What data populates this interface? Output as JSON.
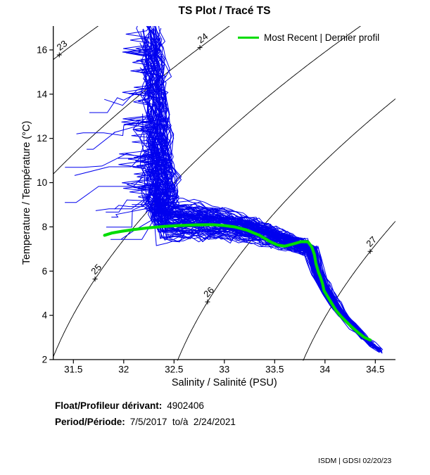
{
  "header": {
    "title": "TS Plot / Tracé TS"
  },
  "legend": {
    "label": "Most Recent | Dernier profil"
  },
  "footer": {
    "float_label": "Float/Profileur dérivant:",
    "float_value": "4902406",
    "period_label": "Period/Période:",
    "period_value": "7/5/2017  to/à  2/24/2021",
    "credit": "ISDM | GDSI 02/20/23"
  },
  "chart_data": {
    "type": "line",
    "title": "TS Plot / Tracé TS",
    "xlabel": "Salinity / Salinité (PSU)",
    "ylabel": "Temperature / Température (°C)",
    "xlim": [
      31.3,
      34.7
    ],
    "ylim": [
      2,
      17.08
    ],
    "xticks": [
      31.5,
      32,
      32.5,
      33,
      33.5,
      34,
      34.5
    ],
    "xtick_labels": [
      "31.5",
      "32",
      "32.5",
      "33",
      "33.5",
      "34",
      "34.5"
    ],
    "yticks": [
      2,
      4,
      6,
      8,
      10,
      12,
      14,
      16
    ],
    "ytick_labels": [
      "2",
      "4",
      "6",
      "8",
      "10",
      "12",
      "14",
      "16"
    ],
    "grid": false,
    "legend_position": "top-right-inside",
    "isopycnals": {
      "description": "sigma-t density contours (UNESCO EOS-80 at surface pressure)",
      "levels": [
        23,
        24,
        25,
        26,
        27
      ],
      "color": "#000000",
      "labels": [
        {
          "level": 23,
          "s": 31.36
        },
        {
          "level": 24,
          "s": 32.757
        },
        {
          "level": 25,
          "s": 31.715
        },
        {
          "level": 26,
          "s": 32.833
        },
        {
          "level": 27,
          "s": 34.449
        }
      ]
    },
    "float_profiles": {
      "note": "cloud of historical TS profiles for float 4902406 (blue)",
      "color": "#0000ee",
      "count": 95,
      "tail_count": 16,
      "seed": 911,
      "bundle_s_center": 32.26,
      "bundle_drift": 0.022,
      "band_t_anchors": [
        [
          32.2,
          8.4
        ],
        [
          32.7,
          8.33
        ],
        [
          33.0,
          8.18
        ],
        [
          33.3,
          7.88
        ],
        [
          33.55,
          7.5
        ],
        [
          33.85,
          7.05
        ]
      ],
      "deep_base": [
        [
          33.85,
          7.05
        ],
        [
          33.88,
          6.5
        ],
        [
          33.92,
          5.95
        ],
        [
          33.97,
          5.45
        ],
        [
          34.03,
          4.95
        ],
        [
          34.1,
          4.45
        ],
        [
          34.18,
          3.97
        ],
        [
          34.27,
          3.52
        ],
        [
          34.37,
          3.07
        ],
        [
          34.47,
          2.68
        ],
        [
          34.55,
          2.38
        ],
        [
          34.63,
          2.05
        ]
      ]
    },
    "most_recent_profile": {
      "name": "Most Recent | Dernier profil",
      "color": "#00dc00",
      "points_s_t": [
        [
          31.81,
          7.62
        ],
        [
          31.88,
          7.72
        ],
        [
          31.98,
          7.8
        ],
        [
          32.1,
          7.88
        ],
        [
          32.25,
          7.96
        ],
        [
          32.4,
          8.02
        ],
        [
          32.55,
          8.06
        ],
        [
          32.72,
          8.09
        ],
        [
          32.88,
          8.1
        ],
        [
          33.0,
          8.06
        ],
        [
          33.1,
          8.0
        ],
        [
          33.22,
          7.86
        ],
        [
          33.35,
          7.62
        ],
        [
          33.46,
          7.32
        ],
        [
          33.53,
          7.18
        ],
        [
          33.6,
          7.13
        ],
        [
          33.68,
          7.22
        ],
        [
          33.76,
          7.33
        ],
        [
          33.83,
          7.33
        ],
        [
          33.87,
          7.08
        ],
        [
          33.895,
          6.74
        ],
        [
          33.91,
          6.35
        ],
        [
          33.935,
          5.95
        ],
        [
          33.955,
          5.72
        ],
        [
          33.975,
          5.45
        ],
        [
          33.99,
          5.12
        ],
        [
          34.03,
          4.82
        ],
        [
          34.07,
          4.52
        ],
        [
          34.11,
          4.22
        ],
        [
          34.16,
          3.95
        ],
        [
          34.21,
          3.72
        ],
        [
          34.27,
          3.46
        ],
        [
          34.33,
          3.22
        ],
        [
          34.39,
          3.01
        ],
        [
          34.45,
          2.88
        ]
      ]
    }
  }
}
